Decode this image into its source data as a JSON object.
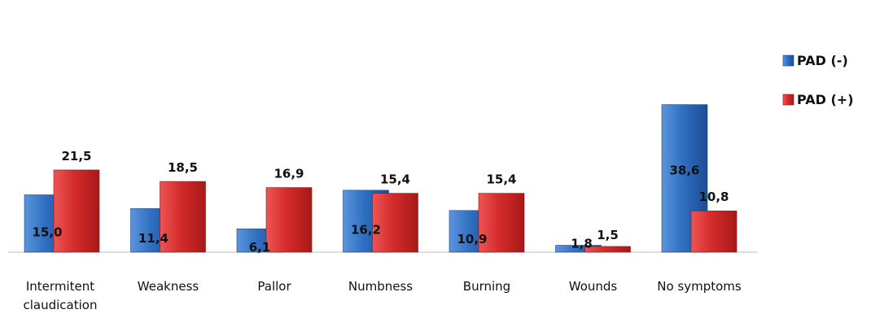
{
  "chart_data": {
    "type": "bar",
    "categories": [
      "Intermitent claudication",
      "Weakness",
      "Pallor",
      "Numbness",
      "Burning",
      "Wounds",
      "No symptoms"
    ],
    "series": [
      {
        "name": "PAD (-)",
        "values": [
          15.0,
          11.4,
          6.1,
          16.2,
          10.9,
          1.8,
          38.6
        ],
        "labels": [
          "15,0",
          "11,4",
          "6,1",
          "16,2",
          "10,9",
          "1,8",
          "38,6"
        ],
        "color": "#2e6fc0"
      },
      {
        "name": "PAD (+)",
        "values": [
          21.5,
          18.5,
          16.9,
          15.4,
          15.4,
          1.5,
          10.8
        ],
        "labels": [
          "21,5",
          "18,5",
          "16,9",
          "15,4",
          "15,4",
          "1,5",
          "10,8"
        ],
        "color": "#d32a2a"
      }
    ],
    "ylim": [
      0,
      40
    ],
    "grid": false,
    "legend_position": "right"
  }
}
